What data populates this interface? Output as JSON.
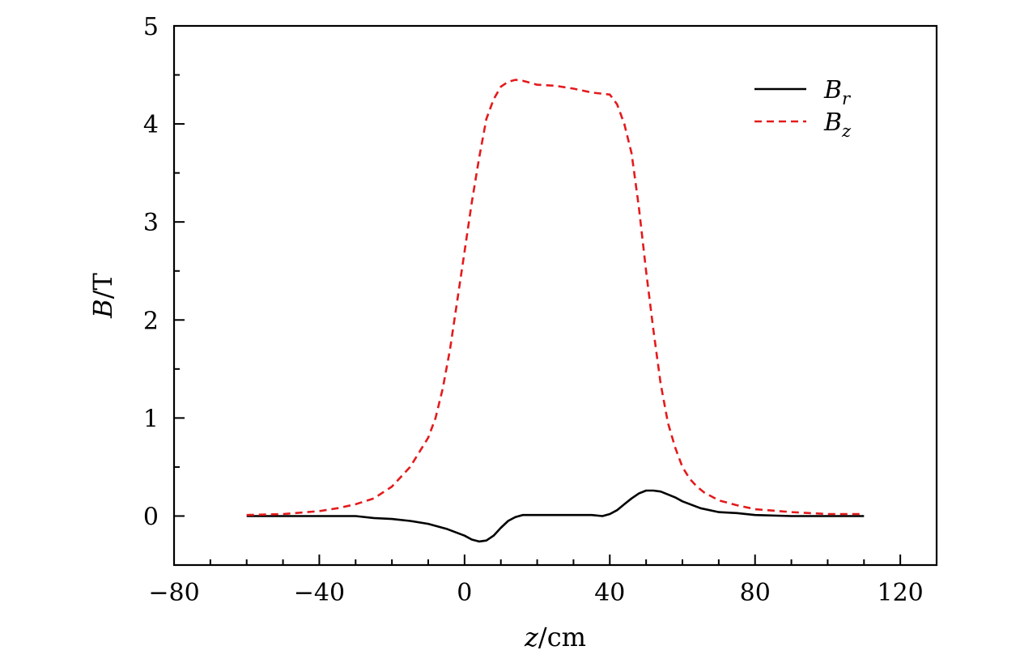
{
  "chart_data": {
    "type": "line",
    "xlabel": {
      "var": "z",
      "unit": "/cm"
    },
    "ylabel": {
      "var": "B",
      "unit": "/T"
    },
    "xlim": [
      -80,
      130
    ],
    "ylim": [
      -0.5,
      5
    ],
    "xticks": [
      -80,
      -40,
      0,
      40,
      80,
      120
    ],
    "xtick_labels": [
      "−80",
      "−40",
      "0",
      "40",
      "80",
      "120"
    ],
    "yticks": [
      0,
      1,
      2,
      3,
      4,
      5
    ],
    "ytick_labels": [
      "0",
      "1",
      "2",
      "3",
      "4",
      "5"
    ],
    "x_minor_step": 10,
    "y_minor_step": 0.5,
    "grid": false,
    "legend_position": "top-right",
    "series": [
      {
        "name": "B_r",
        "legend": {
          "main": "B",
          "sub": "r"
        },
        "color": "#000000",
        "dash": "solid",
        "x": [
          -60,
          -30,
          -25,
          -20,
          -15,
          -10,
          -5,
          0,
          2,
          4,
          6,
          8,
          10,
          12,
          14,
          16,
          20,
          30,
          35,
          38,
          40,
          42,
          44,
          46,
          48,
          50,
          52,
          54,
          56,
          58,
          60,
          65,
          70,
          75,
          80,
          90,
          100,
          110
        ],
        "y": [
          0.0,
          0.0,
          -0.02,
          -0.03,
          -0.05,
          -0.08,
          -0.13,
          -0.2,
          -0.24,
          -0.26,
          -0.25,
          -0.2,
          -0.12,
          -0.05,
          -0.01,
          0.01,
          0.01,
          0.01,
          0.01,
          0.0,
          0.02,
          0.06,
          0.12,
          0.18,
          0.23,
          0.26,
          0.26,
          0.25,
          0.22,
          0.19,
          0.15,
          0.08,
          0.04,
          0.03,
          0.01,
          0.0,
          0.0,
          0.0
        ]
      },
      {
        "name": "B_z",
        "legend": {
          "main": "B",
          "sub": "z"
        },
        "color": "#e41a1c",
        "dash": "dashed",
        "x": [
          -60,
          -50,
          -40,
          -35,
          -30,
          -25,
          -20,
          -15,
          -10,
          -8,
          -6,
          -4,
          -2,
          0,
          2,
          4,
          6,
          8,
          10,
          12,
          14,
          16,
          18,
          20,
          25,
          30,
          35,
          40,
          42,
          44,
          46,
          48,
          50,
          52,
          54,
          56,
          58,
          60,
          62,
          64,
          66,
          70,
          75,
          80,
          90,
          100,
          110
        ],
        "y": [
          0.01,
          0.02,
          0.05,
          0.08,
          0.12,
          0.18,
          0.3,
          0.5,
          0.8,
          1.0,
          1.3,
          1.7,
          2.2,
          2.7,
          3.2,
          3.65,
          4.05,
          4.25,
          4.38,
          4.43,
          4.45,
          4.44,
          4.42,
          4.4,
          4.39,
          4.36,
          4.32,
          4.3,
          4.2,
          4.0,
          3.7,
          3.15,
          2.5,
          1.9,
          1.35,
          0.95,
          0.7,
          0.5,
          0.38,
          0.3,
          0.24,
          0.16,
          0.11,
          0.07,
          0.04,
          0.02,
          0.02
        ]
      }
    ]
  }
}
